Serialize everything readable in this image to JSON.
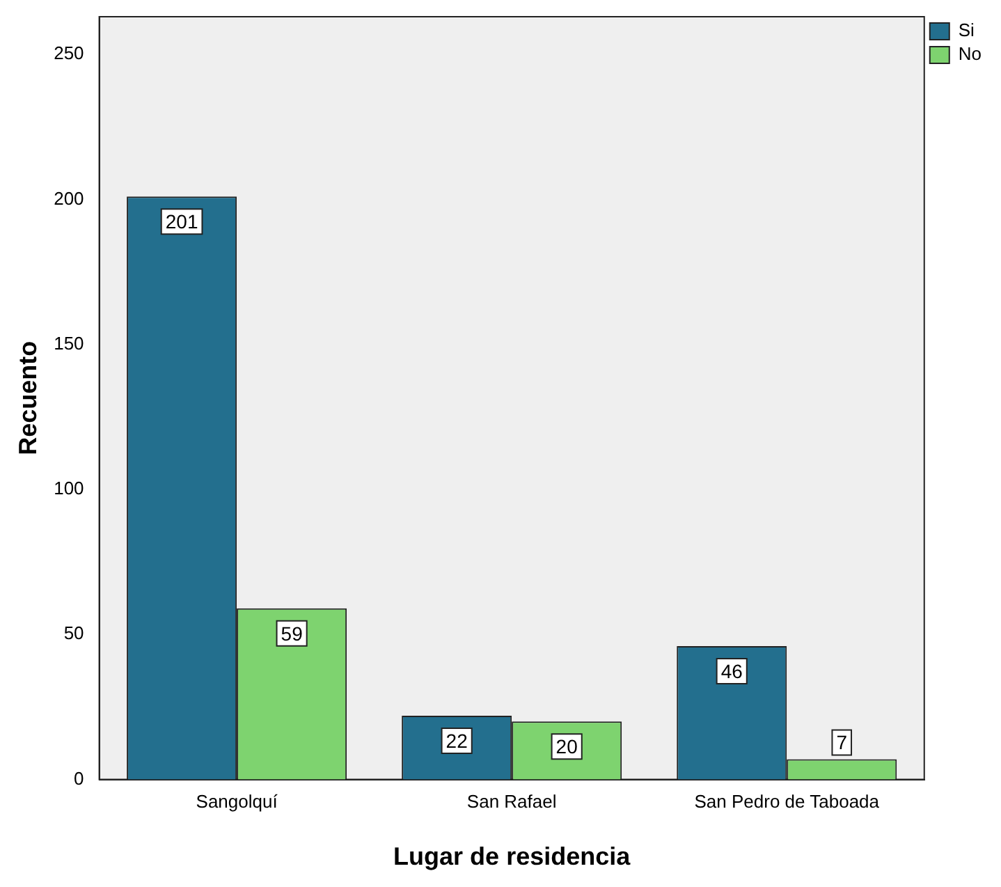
{
  "chart_data": {
    "type": "bar",
    "xlabel": "Lugar de residencia",
    "ylabel": "Recuento",
    "categories": [
      "Sangolquí",
      "San Rafael",
      "San Pedro de Taboada"
    ],
    "series": [
      {
        "name": "Si",
        "color": "#236f8e",
        "values": [
          201,
          22,
          46
        ]
      },
      {
        "name": "No",
        "color": "#7ed36f",
        "values": [
          59,
          20,
          7
        ]
      }
    ],
    "ylim": [
      0,
      263
    ],
    "yticks": [
      0,
      50,
      100,
      150,
      200,
      250
    ],
    "grid": false,
    "legend": "top right",
    "data_labels": true
  }
}
